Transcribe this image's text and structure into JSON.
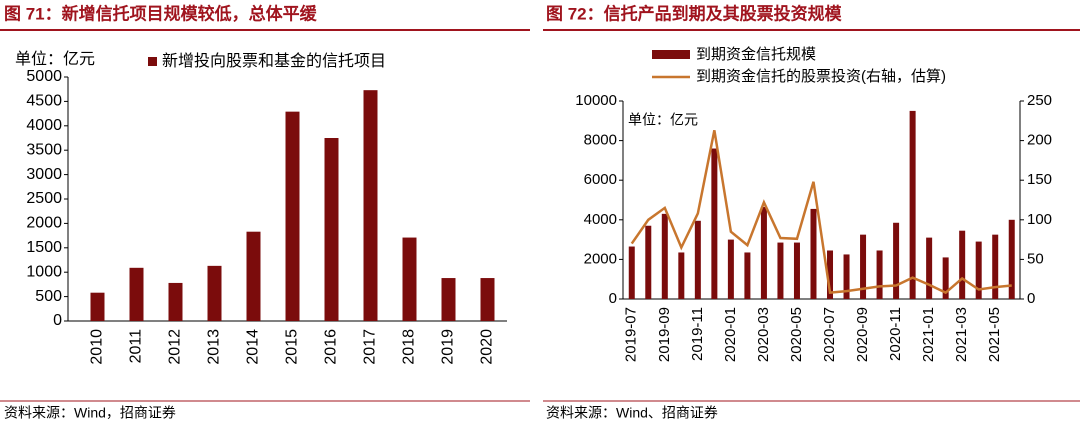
{
  "chart_data": [
    {
      "type": "bar",
      "title": "图 71：新增信托项目规模较低，总体平缓",
      "unit": "单位：亿元",
      "source": "资料来源：Wind，招商证券",
      "categories": [
        "2010",
        "2011",
        "2012",
        "2013",
        "2014",
        "2015",
        "2016",
        "2017",
        "2018",
        "2019",
        "2020"
      ],
      "series": [
        {
          "name": "新增投向股票和基金的信托项目",
          "color": "#7b0c0c",
          "type": "bar",
          "values": [
            580,
            1090,
            780,
            1130,
            1830,
            4290,
            3750,
            4730,
            1710,
            880,
            880
          ]
        }
      ],
      "ylim": [
        0,
        5000
      ],
      "yticks": [
        0,
        500,
        1000,
        1500,
        2000,
        2500,
        3000,
        3500,
        4000,
        4500,
        5000
      ]
    },
    {
      "type": "bar",
      "title": "图 72：信托产品到期及其股票投资规模",
      "unit": "单位：亿元",
      "source": "资料来源：Wind、招商证券",
      "categories": [
        "2019-07",
        null,
        "2019-09",
        null,
        "2019-11",
        null,
        "2020-01",
        null,
        "2020-03",
        null,
        "2020-05",
        null,
        "2020-07",
        null,
        "2020-09",
        null,
        "2020-11",
        null,
        "2021-01",
        null,
        "2021-03",
        null,
        "2021-05",
        null
      ],
      "series": [
        {
          "name": "到期资金信托规模",
          "color": "#7b0c0c",
          "type": "bar",
          "values": [
            2650,
            3700,
            4300,
            2350,
            3950,
            7600,
            3000,
            2350,
            4650,
            2850,
            2850,
            4550,
            2450,
            2250,
            3250,
            2450,
            3850,
            9500,
            3100,
            2100,
            3450,
            2900,
            3250,
            4000
          ]
        },
        {
          "name": "到期资金信托的股票投资(右轴，估算)",
          "color": "#c8762e",
          "type": "line",
          "axis": "y2",
          "values": [
            70,
            100,
            115,
            65,
            108,
            213,
            85,
            68,
            122,
            77,
            76,
            148,
            8,
            10,
            13,
            16,
            17,
            27,
            18,
            8,
            26,
            12,
            15,
            17
          ]
        }
      ],
      "ylim": [
        0,
        10000
      ],
      "yticks": [
        0,
        2000,
        4000,
        6000,
        8000,
        10000
      ],
      "y2lim": [
        0,
        250
      ],
      "y2ticks": [
        0,
        50,
        100,
        150,
        200,
        250
      ]
    }
  ]
}
